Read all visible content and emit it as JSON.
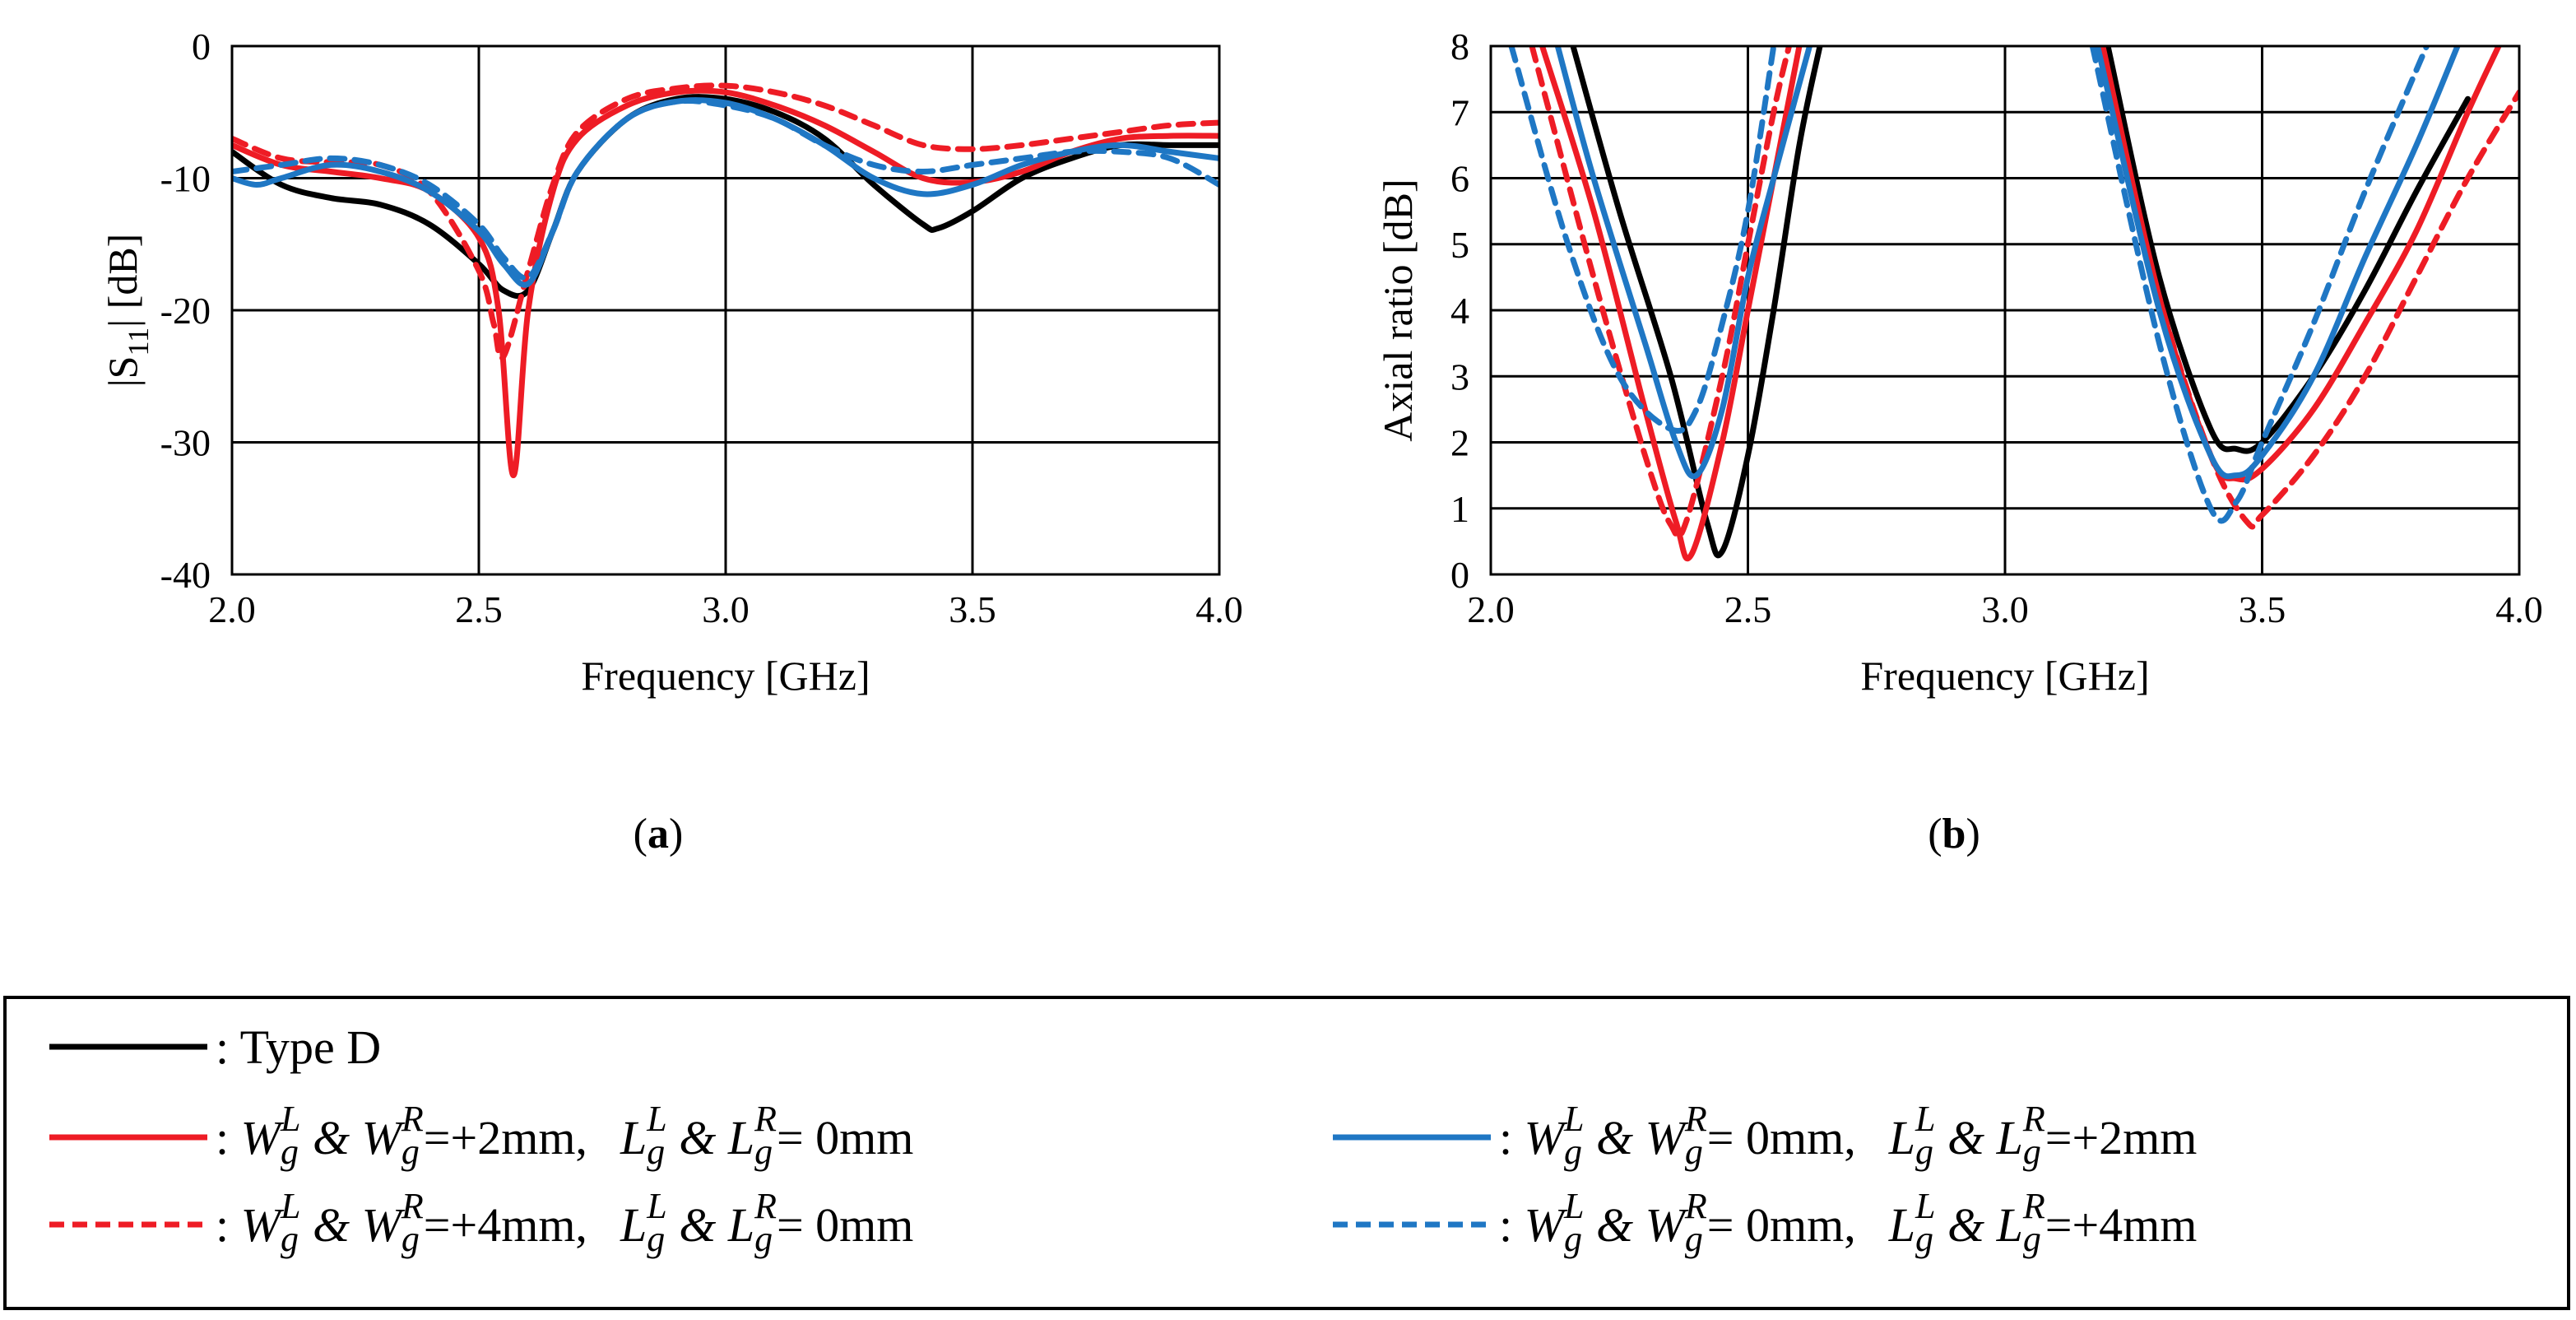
{
  "figure": {
    "panel_a_label_open": "(",
    "panel_a_label": "a",
    "panel_a_label_close": ")",
    "panel_b_label_open": "(",
    "panel_b_label": "b",
    "panel_b_label_close": ")"
  },
  "legend": {
    "type_d": ": Type D",
    "sep": ": ",
    "W": "W",
    "L": "L",
    "g": "g",
    "supL": "L",
    "supR": "R",
    "amp": " & ",
    "eq_plus2": "=+2mm,",
    "eq_plus4": "=+4mm,",
    "eq_zero": "=  0mm,",
    "end_zero": "=   0mm",
    "end_plus2": "=+2mm",
    "end_plus4": "=+4mm"
  },
  "colors": {
    "type_d": "#000000",
    "red": "#ee1c25",
    "blue": "#1f77c4"
  },
  "chart_data": [
    {
      "type": "line",
      "title": "",
      "xlabel": "Frequency [GHz]",
      "ylabel_main": "|S",
      "ylabel_sub": "11",
      "ylabel_end": "| [dB]",
      "xlim": [
        2.0,
        4.0
      ],
      "ylim": [
        -40,
        0
      ],
      "xticks": [
        "2.0",
        "2.5",
        "3.0",
        "3.5",
        "4.0"
      ],
      "yticks": [
        "0",
        "-10",
        "-20",
        "-30",
        "-40"
      ],
      "grid": true,
      "series": [
        {
          "name": "Type D",
          "color": "#000000",
          "dash": false,
          "x": [
            2.0,
            2.1,
            2.2,
            2.3,
            2.4,
            2.5,
            2.55,
            2.6,
            2.65,
            2.7,
            2.8,
            2.9,
            3.0,
            3.1,
            3.2,
            3.3,
            3.4,
            3.43,
            3.5,
            3.6,
            3.7,
            3.8,
            3.9,
            4.0
          ],
          "y": [
            -8.0,
            -10.5,
            -11.5,
            -12.0,
            -13.5,
            -16.5,
            -18.5,
            -18.5,
            -14.0,
            -9.5,
            -5.5,
            -4.0,
            -4.0,
            -5.0,
            -7.0,
            -10.5,
            -13.5,
            -13.8,
            -12.5,
            -10.0,
            -8.5,
            -7.5,
            -7.5,
            -7.5
          ]
        },
        {
          "name": "Wg +2mm, Lg 0mm",
          "color": "#ee1c25",
          "dash": false,
          "x": [
            2.0,
            2.1,
            2.2,
            2.3,
            2.4,
            2.5,
            2.54,
            2.57,
            2.6,
            2.65,
            2.7,
            2.8,
            2.9,
            3.0,
            3.1,
            3.2,
            3.3,
            3.4,
            3.5,
            3.6,
            3.7,
            3.8,
            3.9,
            4.0
          ],
          "y": [
            -7.5,
            -9.0,
            -9.5,
            -10.0,
            -11.0,
            -14.5,
            -20.0,
            -32.5,
            -20.0,
            -11.0,
            -7.0,
            -4.5,
            -3.5,
            -3.5,
            -4.5,
            -6.0,
            -8.0,
            -10.0,
            -10.3,
            -9.5,
            -8.0,
            -7.0,
            -6.8,
            -6.8
          ]
        },
        {
          "name": "Wg +4mm, Lg 0mm",
          "color": "#ee1c25",
          "dash": true,
          "x": [
            2.0,
            2.1,
            2.2,
            2.3,
            2.4,
            2.5,
            2.53,
            2.55,
            2.6,
            2.65,
            2.7,
            2.8,
            2.9,
            3.0,
            3.1,
            3.2,
            3.3,
            3.4,
            3.5,
            3.6,
            3.7,
            3.8,
            3.9,
            4.0
          ],
          "y": [
            -7.0,
            -8.5,
            -8.8,
            -9.0,
            -11.0,
            -17.0,
            -21.0,
            -23.5,
            -17.0,
            -10.5,
            -6.5,
            -4.0,
            -3.2,
            -3.0,
            -3.5,
            -4.5,
            -6.0,
            -7.5,
            -7.8,
            -7.5,
            -7.0,
            -6.5,
            -6.0,
            -5.8
          ]
        },
        {
          "name": "Wg 0mm, Lg +2mm",
          "color": "#1f77c4",
          "dash": false,
          "x": [
            2.0,
            2.05,
            2.1,
            2.2,
            2.3,
            2.4,
            2.5,
            2.55,
            2.6,
            2.65,
            2.7,
            2.8,
            2.9,
            3.0,
            3.1,
            3.2,
            3.3,
            3.4,
            3.5,
            3.6,
            3.7,
            3.8,
            3.9,
            4.0
          ],
          "y": [
            -10.0,
            -10.5,
            -10.0,
            -9.0,
            -9.5,
            -11.0,
            -14.0,
            -16.5,
            -18.0,
            -14.0,
            -9.5,
            -5.5,
            -4.2,
            -4.3,
            -5.5,
            -7.5,
            -10.0,
            -11.2,
            -10.5,
            -9.0,
            -8.0,
            -7.5,
            -8.0,
            -8.5
          ]
        },
        {
          "name": "Wg 0mm, Lg +4mm",
          "color": "#1f77c4",
          "dash": true,
          "x": [
            2.0,
            2.1,
            2.2,
            2.3,
            2.4,
            2.5,
            2.55,
            2.6,
            2.65,
            2.7,
            2.8,
            2.9,
            3.0,
            3.1,
            3.2,
            3.3,
            3.4,
            3.5,
            3.6,
            3.7,
            3.8,
            3.9,
            4.0
          ],
          "y": [
            -9.5,
            -9.0,
            -8.5,
            -9.0,
            -10.5,
            -13.5,
            -16.0,
            -17.5,
            -14.0,
            -9.5,
            -5.5,
            -4.2,
            -4.5,
            -5.5,
            -7.5,
            -9.0,
            -9.5,
            -9.0,
            -8.5,
            -8.0,
            -8.0,
            -8.5,
            -10.5
          ]
        }
      ]
    },
    {
      "type": "line",
      "title": "",
      "xlabel": "Frequency [GHz]",
      "ylabel": "Axial ratio [dB]",
      "xlim": [
        2.0,
        4.0
      ],
      "ylim": [
        0,
        8
      ],
      "xticks": [
        "2.0",
        "2.5",
        "3.0",
        "3.5",
        "4.0"
      ],
      "yticks": [
        "8",
        "7",
        "6",
        "5",
        "4",
        "3",
        "2",
        "1",
        "0"
      ],
      "grid": true,
      "series": [
        {
          "name": "Type D",
          "color": "#000000",
          "dash": false,
          "x": [
            2.16,
            2.25,
            2.35,
            2.42,
            2.45,
            2.5,
            2.55,
            2.6,
            2.64,
            3.2,
            3.3,
            3.4,
            3.45,
            3.5,
            3.6,
            3.7,
            3.8,
            3.9
          ],
          "y": [
            8.0,
            5.5,
            3.0,
            0.8,
            0.35,
            1.8,
            4.0,
            6.5,
            8.0,
            8.0,
            4.5,
            2.2,
            1.9,
            2.0,
            3.0,
            4.3,
            5.8,
            7.2
          ]
        },
        {
          "name": "Wg +2mm, Lg 0mm",
          "color": "#ee1c25",
          "dash": false,
          "x": [
            2.1,
            2.2,
            2.3,
            2.36,
            2.39,
            2.45,
            2.5,
            2.55,
            2.6,
            3.19,
            3.3,
            3.4,
            3.45,
            3.5,
            3.6,
            3.7,
            3.8,
            3.9,
            3.96
          ],
          "y": [
            8.0,
            5.5,
            2.5,
            0.8,
            0.3,
            2.0,
            4.0,
            6.0,
            8.0,
            8.0,
            4.2,
            1.8,
            1.45,
            1.6,
            2.5,
            3.8,
            5.2,
            7.0,
            8.0
          ]
        },
        {
          "name": "Wg +4mm, Lg 0mm",
          "color": "#ee1c25",
          "dash": true,
          "x": [
            2.08,
            2.2,
            2.3,
            2.35,
            2.38,
            2.45,
            2.5,
            2.55,
            2.58,
            3.18,
            3.3,
            3.4,
            3.47,
            3.5,
            3.6,
            3.7,
            3.8,
            3.9,
            4.0
          ],
          "y": [
            8.0,
            4.5,
            1.8,
            0.75,
            0.8,
            3.0,
            5.0,
            7.0,
            8.0,
            8.0,
            4.2,
            1.8,
            0.8,
            0.9,
            1.8,
            3.0,
            4.5,
            6.0,
            7.3
          ]
        },
        {
          "name": "Wg 0mm, Lg +2mm",
          "color": "#1f77c4",
          "dash": false,
          "x": [
            2.13,
            2.2,
            2.3,
            2.36,
            2.4,
            2.45,
            2.5,
            2.55,
            2.62,
            3.18,
            3.3,
            3.4,
            3.45,
            3.5,
            3.6,
            3.7,
            3.8,
            3.88
          ],
          "y": [
            8.0,
            6.0,
            3.5,
            2.0,
            1.5,
            2.5,
            4.5,
            6.0,
            8.0,
            8.0,
            4.0,
            1.8,
            1.5,
            1.8,
            3.0,
            4.8,
            6.5,
            8.0
          ]
        },
        {
          "name": "Wg 0mm, Lg +4mm",
          "color": "#1f77c4",
          "dash": true,
          "x": [
            2.04,
            2.15,
            2.25,
            2.35,
            2.4,
            2.45,
            2.5,
            2.55,
            3.17,
            3.3,
            3.4,
            3.45,
            3.5,
            3.6,
            3.7,
            3.82
          ],
          "y": [
            8.0,
            5.0,
            3.0,
            2.2,
            2.5,
            3.8,
            5.5,
            8.0,
            8.0,
            3.5,
            1.0,
            1.1,
            2.0,
            3.8,
            5.8,
            8.0
          ]
        }
      ]
    }
  ]
}
